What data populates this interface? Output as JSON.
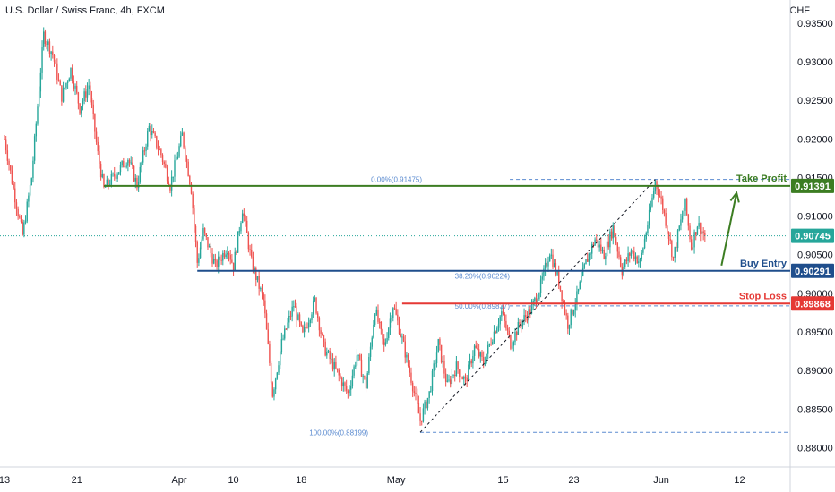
{
  "header": {
    "symbol": "U.S. Dollar / Swiss Franc, 4h, FXCM",
    "currency": "CHF"
  },
  "colors": {
    "up": "#26a69a",
    "down": "#ef5350",
    "take_profit": "#3c7d22",
    "entry": "#1f4e8c",
    "stop": "#e53935",
    "fib": "#5b8bd0",
    "last": "#26a69a",
    "grid": "#e9ecef",
    "axis": "#787b86"
  },
  "chart_data": {
    "type": "candlestick",
    "ylim": [
      0.8775,
      0.938
    ],
    "y_ticks": [
      "0.93500",
      "0.93000",
      "0.92500",
      "0.92000",
      "0.91500",
      "0.91000",
      "0.90500",
      "0.90000",
      "0.89500",
      "0.89000",
      "0.88500",
      "0.88000"
    ],
    "y_tick_values": [
      0.935,
      0.93,
      0.925,
      0.92,
      0.915,
      0.91,
      0.905,
      0.9,
      0.895,
      0.89,
      0.885,
      0.88
    ],
    "x_ticks": [
      "13",
      "21",
      "Apr",
      "10",
      "18",
      "May",
      "15",
      "23",
      "Jun",
      "12"
    ],
    "x_tick_index": [
      0,
      48,
      116,
      152,
      197,
      260,
      331,
      378,
      436,
      488
    ],
    "bars_total": 500,
    "last_bar_index": 465,
    "anchors": [
      [
        0,
        0.92
      ],
      [
        6,
        0.9135
      ],
      [
        12,
        0.9075
      ],
      [
        18,
        0.915
      ],
      [
        26,
        0.9335
      ],
      [
        32,
        0.931
      ],
      [
        38,
        0.9255
      ],
      [
        44,
        0.929
      ],
      [
        50,
        0.924
      ],
      [
        56,
        0.927
      ],
      [
        62,
        0.918
      ],
      [
        66,
        0.9135
      ],
      [
        74,
        0.9155
      ],
      [
        82,
        0.9175
      ],
      [
        88,
        0.914
      ],
      [
        96,
        0.9215
      ],
      [
        104,
        0.918
      ],
      [
        110,
        0.914
      ],
      [
        118,
        0.9205
      ],
      [
        124,
        0.9135
      ],
      [
        128,
        0.904
      ],
      [
        132,
        0.908
      ],
      [
        140,
        0.9035
      ],
      [
        148,
        0.906
      ],
      [
        152,
        0.9035
      ],
      [
        158,
        0.911
      ],
      [
        164,
        0.904
      ],
      [
        172,
        0.899
      ],
      [
        178,
        0.887
      ],
      [
        184,
        0.8935
      ],
      [
        192,
        0.8985
      ],
      [
        198,
        0.8945
      ],
      [
        206,
        0.899
      ],
      [
        212,
        0.893
      ],
      [
        220,
        0.89
      ],
      [
        228,
        0.887
      ],
      [
        234,
        0.892
      ],
      [
        240,
        0.888
      ],
      [
        246,
        0.898
      ],
      [
        252,
        0.893
      ],
      [
        258,
        0.8985
      ],
      [
        264,
        0.894
      ],
      [
        270,
        0.889
      ],
      [
        276,
        0.8835
      ],
      [
        282,
        0.887
      ],
      [
        288,
        0.8935
      ],
      [
        294,
        0.888
      ],
      [
        300,
        0.8905
      ],
      [
        306,
        0.8885
      ],
      [
        312,
        0.893
      ],
      [
        318,
        0.891
      ],
      [
        324,
        0.8945
      ],
      [
        330,
        0.8975
      ],
      [
        336,
        0.8935
      ],
      [
        342,
        0.896
      ],
      [
        350,
        0.898
      ],
      [
        356,
        0.901
      ],
      [
        362,
        0.9055
      ],
      [
        368,
        0.9015
      ],
      [
        374,
        0.896
      ],
      [
        380,
        0.8995
      ],
      [
        386,
        0.904
      ],
      [
        392,
        0.907
      ],
      [
        398,
        0.905
      ],
      [
        404,
        0.9085
      ],
      [
        410,
        0.903
      ],
      [
        416,
        0.9055
      ],
      [
        422,
        0.904
      ],
      [
        428,
        0.91
      ],
      [
        432,
        0.9145
      ],
      [
        436,
        0.912
      ],
      [
        440,
        0.9085
      ],
      [
        444,
        0.9045
      ],
      [
        448,
        0.9085
      ],
      [
        452,
        0.9115
      ],
      [
        456,
        0.906
      ],
      [
        460,
        0.909
      ],
      [
        465,
        0.90745
      ]
    ],
    "levels": {
      "take_profit": {
        "label": "Take Profit",
        "value": 0.91391,
        "price_label": "0.91391"
      },
      "buy_entry": {
        "label": "Buy Entry",
        "value": 0.90291,
        "price_label": "0.90291"
      },
      "stop_loss": {
        "label": "Stop Loss",
        "value": 0.89868,
        "price_label": "0.89868"
      },
      "last_price": {
        "value": 0.90745,
        "price_label": "0.90745"
      }
    },
    "fib": {
      "from": {
        "index": 276,
        "value": 0.88199
      },
      "to": {
        "index": 432,
        "value": 0.91475
      },
      "levels": [
        {
          "label": "0.00%(0.91475)",
          "value": 0.91475
        },
        {
          "label": "38.20%(0.90224)",
          "value": 0.90224
        },
        {
          "label": "50.00%(0.89837)",
          "value": 0.89837
        },
        {
          "label": "100.00%(0.88199)",
          "value": 0.88199
        }
      ]
    },
    "arrow": {
      "from": {
        "index": 476,
        "value": 0.9036
      },
      "to": {
        "index": 486,
        "value": 0.913
      }
    }
  }
}
